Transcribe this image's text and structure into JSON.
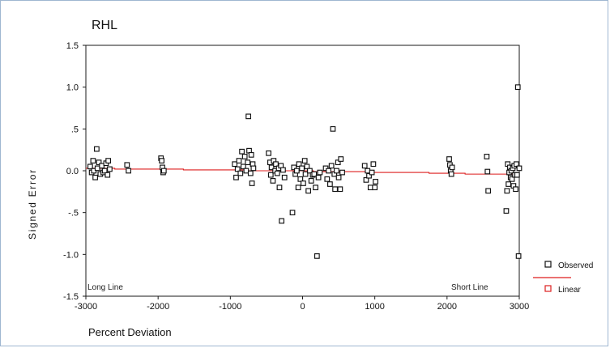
{
  "chart_data": {
    "type": "scatter",
    "title": "RHL",
    "xlabel": "Percent Deviation",
    "ylabel": "Signed Error",
    "xlim": [
      -3000,
      3000
    ],
    "ylim": [
      -1.5,
      1.5
    ],
    "x_ticks": [
      -3000,
      -2000,
      -1000,
      0,
      1000,
      2000,
      3000
    ],
    "x_tick_labels": [
      "-3000",
      "-2000",
      "-1000",
      "0",
      "1000",
      "2000",
      "3000"
    ],
    "y_ticks": [
      1.5,
      1.0,
      0.5,
      0.0,
      -0.5,
      -1.0,
      -1.5
    ],
    "y_tick_labels": [
      "1.5",
      "1.0",
      ".5",
      "0.0",
      "-.5",
      "-1.0",
      "-1.5"
    ],
    "grid": false,
    "legend_position": "right",
    "annotations": [
      {
        "text": "Long Line",
        "x": -2650,
        "y": -1.45
      },
      {
        "text": "Short Line",
        "x": 2380,
        "y": -1.45
      }
    ],
    "series": [
      {
        "name": "Observed",
        "marker": "square",
        "color": "#111111",
        "points": [
          [
            -2940,
            0.05
          ],
          [
            -2920,
            -0.02
          ],
          [
            -2900,
            0.12
          ],
          [
            -2890,
            0.0
          ],
          [
            -2870,
            -0.08
          ],
          [
            -2850,
            0.26
          ],
          [
            -2840,
            0.03
          ],
          [
            -2820,
            0.1
          ],
          [
            -2800,
            -0.04
          ],
          [
            -2780,
            0.06
          ],
          [
            -2760,
            -0.02
          ],
          [
            -2740,
            0.0
          ],
          [
            -2720,
            0.09
          ],
          [
            -2700,
            -0.05
          ],
          [
            -2690,
            0.12
          ],
          [
            -2670,
            0.02
          ],
          [
            -2430,
            0.07
          ],
          [
            -2410,
            0.0
          ],
          [
            -1960,
            0.15
          ],
          [
            -1950,
            0.12
          ],
          [
            -1940,
            0.04
          ],
          [
            -1930,
            -0.02
          ],
          [
            -1920,
            0.0
          ],
          [
            -940,
            0.08
          ],
          [
            -920,
            -0.08
          ],
          [
            -900,
            0.02
          ],
          [
            -880,
            0.12
          ],
          [
            -860,
            -0.03
          ],
          [
            -840,
            0.23
          ],
          [
            -820,
            0.05
          ],
          [
            -800,
            0.17
          ],
          [
            -780,
            0.0
          ],
          [
            -760,
            0.1
          ],
          [
            -750,
            0.65
          ],
          [
            -740,
            0.24
          ],
          [
            -720,
            -0.03
          ],
          [
            -710,
            0.19
          ],
          [
            -700,
            -0.15
          ],
          [
            -690,
            0.08
          ],
          [
            -680,
            0.03
          ],
          [
            -470,
            0.21
          ],
          [
            -450,
            0.1
          ],
          [
            -440,
            -0.05
          ],
          [
            -430,
            0.04
          ],
          [
            -410,
            -0.12
          ],
          [
            -400,
            0.12
          ],
          [
            -380,
            0.0
          ],
          [
            -370,
            0.08
          ],
          [
            -350,
            -0.03
          ],
          [
            -330,
            0.03
          ],
          [
            -320,
            -0.2
          ],
          [
            -300,
            0.06
          ],
          [
            -290,
            -0.6
          ],
          [
            -270,
            0.01
          ],
          [
            -250,
            -0.08
          ],
          [
            -140,
            -0.5
          ],
          [
            -120,
            0.04
          ],
          [
            -100,
            -0.04
          ],
          [
            -80,
            0.0
          ],
          [
            -60,
            -0.2
          ],
          [
            -50,
            0.08
          ],
          [
            -30,
            -0.1
          ],
          [
            -10,
            0.03
          ],
          [
            10,
            -0.15
          ],
          [
            30,
            0.12
          ],
          [
            40,
            -0.04
          ],
          [
            60,
            0.05
          ],
          [
            80,
            -0.24
          ],
          [
            100,
            0.0
          ],
          [
            120,
            -0.12
          ],
          [
            140,
            -0.05
          ],
          [
            160,
            -0.04
          ],
          [
            180,
            -0.2
          ],
          [
            200,
            -1.02
          ],
          [
            220,
            -0.08
          ],
          [
            240,
            -0.02
          ],
          [
            320,
            0.03
          ],
          [
            340,
            -0.1
          ],
          [
            360,
            0.0
          ],
          [
            380,
            -0.16
          ],
          [
            400,
            0.06
          ],
          [
            420,
            0.5
          ],
          [
            440,
            -0.04
          ],
          [
            450,
            -0.22
          ],
          [
            470,
            0.0
          ],
          [
            490,
            0.1
          ],
          [
            500,
            -0.08
          ],
          [
            520,
            -0.22
          ],
          [
            530,
            0.14
          ],
          [
            550,
            -0.02
          ],
          [
            860,
            0.06
          ],
          [
            880,
            -0.11
          ],
          [
            900,
            0.0
          ],
          [
            920,
            -0.06
          ],
          [
            940,
            -0.2
          ],
          [
            960,
            -0.02
          ],
          [
            980,
            0.08
          ],
          [
            1000,
            -0.2
          ],
          [
            1010,
            -0.13
          ],
          [
            2030,
            0.14
          ],
          [
            2040,
            0.07
          ],
          [
            2050,
            0.0
          ],
          [
            2060,
            -0.04
          ],
          [
            2070,
            0.04
          ],
          [
            2550,
            0.17
          ],
          [
            2560,
            -0.01
          ],
          [
            2570,
            -0.24
          ],
          [
            2820,
            -0.48
          ],
          [
            2830,
            -0.24
          ],
          [
            2840,
            0.08
          ],
          [
            2850,
            -0.16
          ],
          [
            2860,
            -0.02
          ],
          [
            2870,
            0.04
          ],
          [
            2880,
            -0.08
          ],
          [
            2890,
            0.0
          ],
          [
            2900,
            -0.1
          ],
          [
            2910,
            0.03
          ],
          [
            2920,
            -0.18
          ],
          [
            2930,
            0.06
          ],
          [
            2940,
            -0.05
          ],
          [
            2950,
            -0.22
          ],
          [
            2960,
            0.08
          ],
          [
            2970,
            -0.05
          ],
          [
            2980,
            1.0
          ],
          [
            2990,
            -1.02
          ],
          [
            3000,
            0.03
          ]
        ]
      },
      {
        "name": "Linear",
        "color": "#dd1f1f",
        "points": [
          [
            -3000,
            0.03
          ],
          [
            -2600,
            0.03
          ],
          [
            -2600,
            0.02
          ],
          [
            -1650,
            0.02
          ],
          [
            -1650,
            0.01
          ],
          [
            -750,
            0.01
          ],
          [
            -750,
            0.0
          ],
          [
            150,
            0.0
          ],
          [
            150,
            -0.01
          ],
          [
            950,
            -0.01
          ],
          [
            950,
            -0.02
          ],
          [
            1750,
            -0.02
          ],
          [
            1750,
            -0.03
          ],
          [
            2250,
            -0.03
          ],
          [
            2250,
            -0.04
          ],
          [
            3000,
            -0.04
          ]
        ]
      }
    ]
  }
}
